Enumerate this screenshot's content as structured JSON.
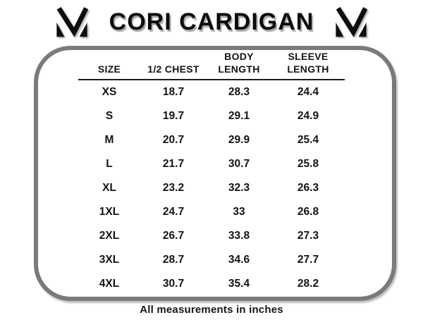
{
  "chart_data": {
    "type": "table",
    "title": "CORI CARDIGAN",
    "columns": [
      "SIZE",
      "1/2 CHEST",
      "BODY LENGTH",
      "SLEEVE LENGTH"
    ],
    "rows": [
      [
        "XS",
        "18.7",
        "28.3",
        "24.4"
      ],
      [
        "S",
        "19.7",
        "29.1",
        "24.9"
      ],
      [
        "M",
        "20.7",
        "29.9",
        "25.4"
      ],
      [
        "L",
        "21.7",
        "30.7",
        "25.8"
      ],
      [
        "XL",
        "23.2",
        "32.3",
        "26.3"
      ],
      [
        "1XL",
        "24.7",
        "33",
        "26.8"
      ],
      [
        "2XL",
        "26.7",
        "33.8",
        "27.3"
      ],
      [
        "3XL",
        "28.7",
        "34.6",
        "27.7"
      ],
      [
        "4XL",
        "30.7",
        "35.4",
        "28.2"
      ]
    ],
    "footnote": "All measurements in inches",
    "layout_hints": {
      "grid": "header-underline-only",
      "units": "inches"
    }
  },
  "branding": {
    "logo_name": "brand-m-monogram",
    "logo_color": "#0d0d0d"
  },
  "colors": {
    "background": "#ffffff",
    "border_gray": "#7a7a7a",
    "text": "#141414"
  }
}
